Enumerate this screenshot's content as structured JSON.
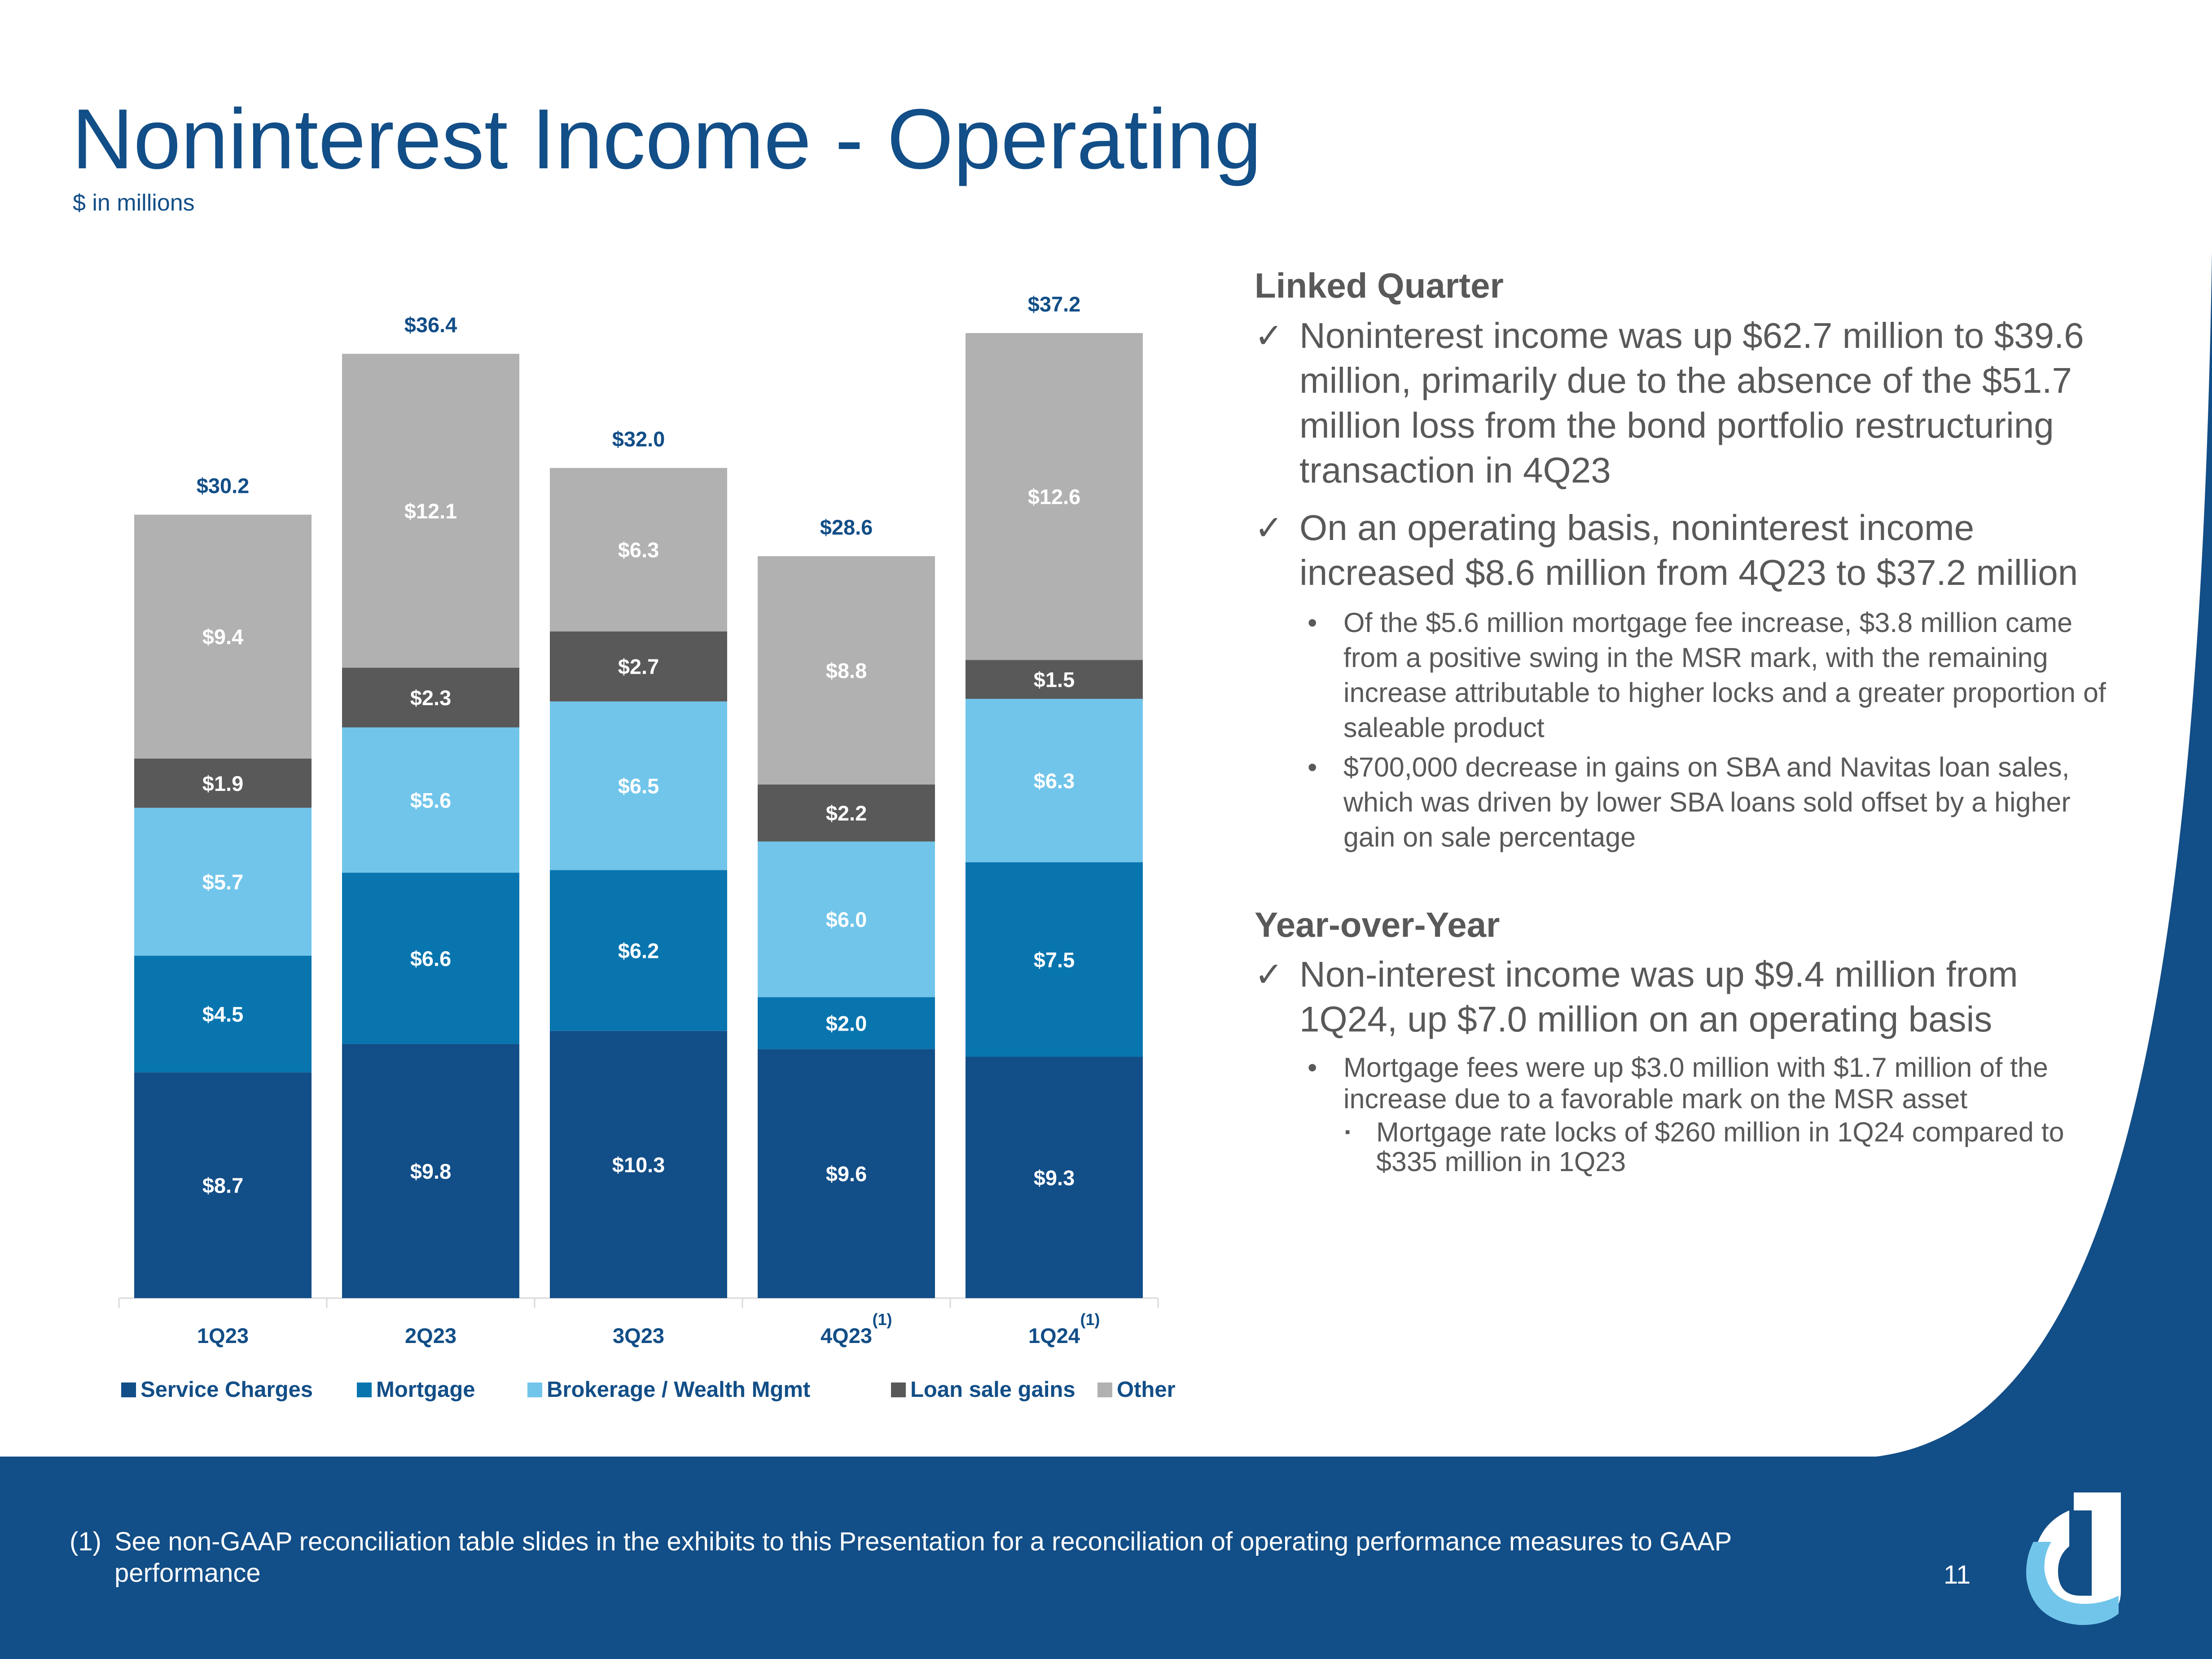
{
  "header": {
    "title": "Noninterest Income - Operating",
    "subtitle": "$ in millions"
  },
  "colors": {
    "title": "#124e87",
    "service_charges": "#124e87",
    "mortgage": "#0875af",
    "brokerage": "#71c5ea",
    "loan_sale_gains": "#595959",
    "other": "#b1b1b1",
    "footer": "#124e87",
    "logo_light": "#71c5ea"
  },
  "chart_data": {
    "type": "bar",
    "stacked": true,
    "categories": [
      "1Q23",
      "2Q23",
      "3Q23",
      "4Q23",
      "1Q24"
    ],
    "category_notes": [
      "",
      "",
      "",
      "(1)",
      "(1)"
    ],
    "series": [
      {
        "name": "Service Charges",
        "color": "#124e87",
        "values": [
          8.7,
          9.8,
          10.3,
          9.6,
          9.3
        ],
        "labels": [
          "$8.7",
          "$9.8",
          "$10.3",
          "$9.6",
          "$9.3"
        ]
      },
      {
        "name": "Mortgage",
        "color": "#0875af",
        "values": [
          4.5,
          6.6,
          6.2,
          2.0,
          7.5
        ],
        "labels": [
          "$4.5",
          "$6.6",
          "$6.2",
          "$2.0",
          "$7.5"
        ]
      },
      {
        "name": "Brokerage / Wealth Mgmt",
        "color": "#71c5ea",
        "values": [
          5.7,
          5.6,
          6.5,
          6.0,
          6.3
        ],
        "labels": [
          "$5.7",
          "$5.6",
          "$6.5",
          "$6.0",
          "$6.3"
        ]
      },
      {
        "name": "Loan sale gains",
        "color": "#595959",
        "values": [
          1.9,
          2.3,
          2.7,
          2.2,
          1.5
        ],
        "labels": [
          "$1.9",
          "$2.3",
          "$2.7",
          "$2.2",
          "$1.5"
        ]
      },
      {
        "name": "Other",
        "color": "#b1b1b1",
        "values": [
          9.4,
          12.1,
          6.3,
          8.8,
          12.6
        ],
        "labels": [
          "$9.4",
          "$12.1",
          "$6.3",
          "$8.8",
          "$12.6"
        ]
      }
    ],
    "totals": [
      30.2,
      36.4,
      32.0,
      28.6,
      37.2
    ],
    "total_labels": [
      "$30.2",
      "$36.4",
      "$32.0",
      "$28.6",
      "$37.2"
    ],
    "ylim": [
      0,
      37.2
    ],
    "legend": "bottom",
    "grid": false
  },
  "commentary": {
    "linked_quarter": {
      "heading": "Linked Quarter",
      "points": [
        {
          "text": "Noninterest income was up $62.7 million to $39.6 million, primarily due to the absence of the $51.7 million loss from the bond portfolio restructuring transaction in 4Q23"
        },
        {
          "text": "On an operating basis, noninterest income increased $8.6 million from 4Q23 to $37.2 million"
        }
      ],
      "bullets": [
        "Of the $5.6 million mortgage fee increase, $3.8 million came from a positive swing in the MSR mark, with the remaining increase attributable to higher locks and a greater proportion of saleable product",
        "$700,000 decrease in gains on SBA and Navitas loan sales, which was driven by lower SBA loans sold offset by a higher gain on sale percentage"
      ]
    },
    "year_over_year": {
      "heading": "Year-over-Year",
      "points": [
        {
          "text": "Non-interest income was up $9.4 million from 1Q24, up $7.0 million on an operating basis"
        }
      ],
      "bullets": [
        "Mortgage fees were up $3.0 million with $1.7 million of the increase due to a favorable mark on the MSR asset"
      ],
      "sub_bullets": [
        "Mortgage rate locks of $260 million in 1Q24 compared to $335 million in 1Q23"
      ]
    },
    "check_mark": "✓",
    "bullet_mark": "•",
    "sub_bullet_mark": "▪"
  },
  "footer": {
    "note_number": "(1)",
    "note_text": "See non-GAAP reconciliation table slides in the exhibits to this Presentation for a reconciliation of operating performance measures to GAAP performance",
    "page_number": "11"
  }
}
